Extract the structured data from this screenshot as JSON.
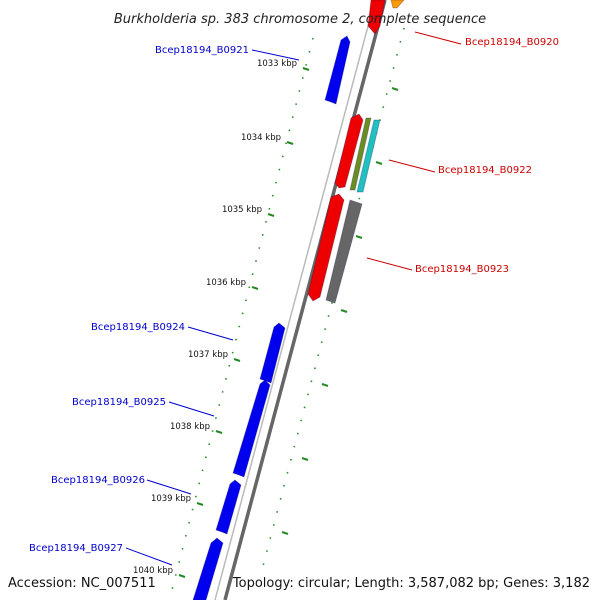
{
  "map": {
    "title": "Burkholderia sp. 383 chromosome 2, complete sequence",
    "accession": "Accession: NC_007511",
    "summary": "Topology: circular; Length: 3,587,082 bp; Genes: 3,182"
  },
  "colors": {
    "forward_label": "#0000cc",
    "reverse_label": "#cc0000",
    "forward_gene": "#0000ee",
    "reverse_gene": "#ee0000",
    "backbone": "#888888",
    "ticks": "#228822",
    "gc_skew_olive": "#6b8e23",
    "gc_skew_cyan": "#20c0c0",
    "pseudo_gene": "#666666",
    "orange_gene": "#ff9900"
  },
  "scale": {
    "ticks": [
      "1033 kbp",
      "1034 kbp",
      "1035 kbp",
      "1036 kbp",
      "1037 kbp",
      "1038 kbp",
      "1039 kbp",
      "1040 kbp"
    ]
  },
  "genes": {
    "forward": [
      {
        "locus": "Bcep18194_B0921",
        "start_kbp": 1032.7,
        "end_kbp": 1033.6
      },
      {
        "locus": "Bcep18194_B0924",
        "start_kbp": 1036.5,
        "end_kbp": 1037.3
      },
      {
        "locus": "Bcep18194_B0925",
        "start_kbp": 1037.3,
        "end_kbp": 1038.6
      },
      {
        "locus": "Bcep18194_B0926",
        "start_kbp": 1038.7,
        "end_kbp": 1039.4
      },
      {
        "locus": "Bcep18194_B0927",
        "start_kbp": 1039.6,
        "end_kbp": 1040.6
      }
    ],
    "reverse": [
      {
        "locus": "Bcep18194_B0920",
        "start_kbp": 1032.4,
        "end_kbp": 1032.6
      },
      {
        "locus": "Bcep18194_B0922",
        "start_kbp": 1033.7,
        "end_kbp": 1034.7
      },
      {
        "locus": "Bcep18194_B0923",
        "start_kbp": 1034.8,
        "end_kbp": 1036.2
      }
    ]
  }
}
